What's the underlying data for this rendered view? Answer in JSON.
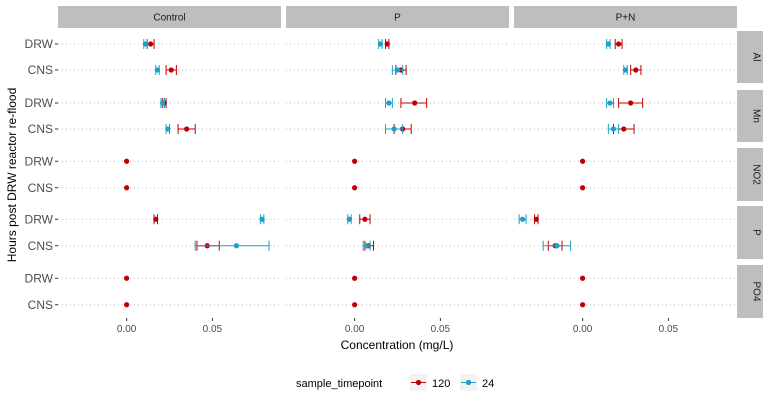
{
  "chart_data": {
    "type": "scatter",
    "subtype": "faceted point estimates with error bars",
    "xlabel": "Concentration (mg/L)",
    "ylabel": "Hours post DRW reactor re-flood",
    "xlim": [
      -0.04,
      0.09
    ],
    "x_ticks": [
      0.0,
      0.05
    ],
    "x_tick_labels": [
      "0.00",
      "0.05"
    ],
    "grid": "dotted horizontal lines at categories",
    "columns": [
      "Control",
      "P",
      "P+N"
    ],
    "rows": [
      "Al",
      "Mn",
      "NO2",
      "P",
      "PO4"
    ],
    "categories": [
      "DRW",
      "CNS"
    ],
    "legend": {
      "title": "sample_timepoint",
      "position": "bottom",
      "items": [
        {
          "label": "120",
          "color": "#c00000"
        },
        {
          "label": "24",
          "color": "#1ba1c7"
        }
      ]
    },
    "series": [
      {
        "name": "120",
        "color": "#c00000",
        "points": [
          {
            "row": "Al",
            "col": "Control",
            "category": "DRW",
            "x": 0.014,
            "lo": 0.012,
            "hi": 0.016
          },
          {
            "row": "Al",
            "col": "Control",
            "category": "CNS",
            "x": 0.026,
            "lo": 0.023,
            "hi": 0.029
          },
          {
            "row": "Al",
            "col": "P",
            "category": "DRW",
            "x": 0.019,
            "lo": 0.018,
            "hi": 0.02
          },
          {
            "row": "Al",
            "col": "P",
            "category": "CNS",
            "x": 0.027,
            "lo": 0.024,
            "hi": 0.03
          },
          {
            "row": "Al",
            "col": "P+N",
            "category": "DRW",
            "x": 0.021,
            "lo": 0.019,
            "hi": 0.023
          },
          {
            "row": "Al",
            "col": "P+N",
            "category": "CNS",
            "x": 0.031,
            "lo": 0.028,
            "hi": 0.034
          },
          {
            "row": "Mn",
            "col": "Control",
            "category": "DRW",
            "x": 0.022,
            "lo": 0.021,
            "hi": 0.023
          },
          {
            "row": "Mn",
            "col": "Control",
            "category": "CNS",
            "x": 0.035,
            "lo": 0.03,
            "hi": 0.04
          },
          {
            "row": "Mn",
            "col": "P",
            "category": "DRW",
            "x": 0.035,
            "lo": 0.027,
            "hi": 0.042
          },
          {
            "row": "Mn",
            "col": "P",
            "category": "CNS",
            "x": 0.028,
            "lo": 0.023,
            "hi": 0.033
          },
          {
            "row": "Mn",
            "col": "P+N",
            "category": "DRW",
            "x": 0.028,
            "lo": 0.021,
            "hi": 0.035
          },
          {
            "row": "Mn",
            "col": "P+N",
            "category": "CNS",
            "x": 0.024,
            "lo": 0.018,
            "hi": 0.03
          },
          {
            "row": "NO2",
            "col": "Control",
            "category": "DRW",
            "x": 0.0,
            "lo": 0.0,
            "hi": 0.0
          },
          {
            "row": "NO2",
            "col": "Control",
            "category": "CNS",
            "x": 0.0,
            "lo": 0.0,
            "hi": 0.0
          },
          {
            "row": "NO2",
            "col": "P",
            "category": "DRW",
            "x": 0.0,
            "lo": 0.0,
            "hi": 0.0
          },
          {
            "row": "NO2",
            "col": "P",
            "category": "CNS",
            "x": 0.0,
            "lo": 0.0,
            "hi": 0.0
          },
          {
            "row": "NO2",
            "col": "P+N",
            "category": "DRW",
            "x": 0.0,
            "lo": 0.0,
            "hi": 0.0
          },
          {
            "row": "NO2",
            "col": "P+N",
            "category": "CNS",
            "x": 0.0,
            "lo": 0.0,
            "hi": 0.0
          },
          {
            "row": "P",
            "col": "Control",
            "category": "DRW",
            "x": 0.017,
            "lo": 0.016,
            "hi": 0.018
          },
          {
            "row": "P",
            "col": "Control",
            "category": "CNS",
            "x": 0.047,
            "lo": 0.041,
            "hi": 0.054
          },
          {
            "row": "P",
            "col": "P",
            "category": "DRW",
            "x": 0.006,
            "lo": 0.003,
            "hi": 0.009
          },
          {
            "row": "P",
            "col": "P",
            "category": "CNS",
            "x": 0.008,
            "lo": 0.006,
            "hi": 0.011
          },
          {
            "row": "P",
            "col": "P+N",
            "category": "DRW",
            "x": -0.027,
            "lo": -0.028,
            "hi": -0.026
          },
          {
            "row": "P",
            "col": "P+N",
            "category": "CNS",
            "x": -0.016,
            "lo": -0.02,
            "hi": -0.012
          },
          {
            "row": "PO4",
            "col": "Control",
            "category": "DRW",
            "x": 0.0,
            "lo": 0.0,
            "hi": 0.0
          },
          {
            "row": "PO4",
            "col": "Control",
            "category": "CNS",
            "x": 0.0,
            "lo": 0.0,
            "hi": 0.0
          },
          {
            "row": "PO4",
            "col": "P",
            "category": "DRW",
            "x": 0.0,
            "lo": 0.0,
            "hi": 0.0
          },
          {
            "row": "PO4",
            "col": "P",
            "category": "CNS",
            "x": 0.0,
            "lo": 0.0,
            "hi": 0.0
          },
          {
            "row": "PO4",
            "col": "P+N",
            "category": "DRW",
            "x": 0.0,
            "lo": 0.0,
            "hi": 0.0
          },
          {
            "row": "PO4",
            "col": "P+N",
            "category": "CNS",
            "x": 0.0,
            "lo": 0.0,
            "hi": 0.0
          }
        ]
      },
      {
        "name": "24",
        "color": "#1ba1c7",
        "points": [
          {
            "row": "Al",
            "col": "Control",
            "category": "DRW",
            "x": 0.011,
            "lo": 0.01,
            "hi": 0.012
          },
          {
            "row": "Al",
            "col": "Control",
            "category": "CNS",
            "x": 0.018,
            "lo": 0.017,
            "hi": 0.019
          },
          {
            "row": "Al",
            "col": "P",
            "category": "DRW",
            "x": 0.015,
            "lo": 0.014,
            "hi": 0.016
          },
          {
            "row": "Al",
            "col": "P",
            "category": "CNS",
            "x": 0.025,
            "lo": 0.022,
            "hi": 0.028
          },
          {
            "row": "Al",
            "col": "P+N",
            "category": "DRW",
            "x": 0.015,
            "lo": 0.014,
            "hi": 0.016
          },
          {
            "row": "Al",
            "col": "P+N",
            "category": "CNS",
            "x": 0.025,
            "lo": 0.024,
            "hi": 0.026
          },
          {
            "row": "Mn",
            "col": "Control",
            "category": "DRW",
            "x": 0.021,
            "lo": 0.02,
            "hi": 0.022
          },
          {
            "row": "Mn",
            "col": "Control",
            "category": "CNS",
            "x": 0.024,
            "lo": 0.023,
            "hi": 0.025
          },
          {
            "row": "Mn",
            "col": "P",
            "category": "DRW",
            "x": 0.02,
            "lo": 0.018,
            "hi": 0.022
          },
          {
            "row": "Mn",
            "col": "P",
            "category": "CNS",
            "x": 0.023,
            "lo": 0.018,
            "hi": 0.028
          },
          {
            "row": "Mn",
            "col": "P+N",
            "category": "DRW",
            "x": 0.016,
            "lo": 0.014,
            "hi": 0.018
          },
          {
            "row": "Mn",
            "col": "P+N",
            "category": "CNS",
            "x": 0.018,
            "lo": 0.015,
            "hi": 0.021
          },
          {
            "row": "P",
            "col": "Control",
            "category": "DRW",
            "x": 0.079,
            "lo": 0.078,
            "hi": 0.08
          },
          {
            "row": "P",
            "col": "Control",
            "category": "CNS",
            "x": 0.064,
            "lo": 0.04,
            "hi": 0.083
          },
          {
            "row": "P",
            "col": "P",
            "category": "DRW",
            "x": -0.003,
            "lo": -0.004,
            "hi": -0.002
          },
          {
            "row": "P",
            "col": "P",
            "category": "CNS",
            "x": 0.007,
            "lo": 0.005,
            "hi": 0.009
          },
          {
            "row": "P",
            "col": "P+N",
            "category": "DRW",
            "x": -0.035,
            "lo": -0.037,
            "hi": -0.033
          },
          {
            "row": "P",
            "col": "P+N",
            "category": "CNS",
            "x": -0.015,
            "lo": -0.023,
            "hi": -0.007
          }
        ]
      }
    ]
  }
}
